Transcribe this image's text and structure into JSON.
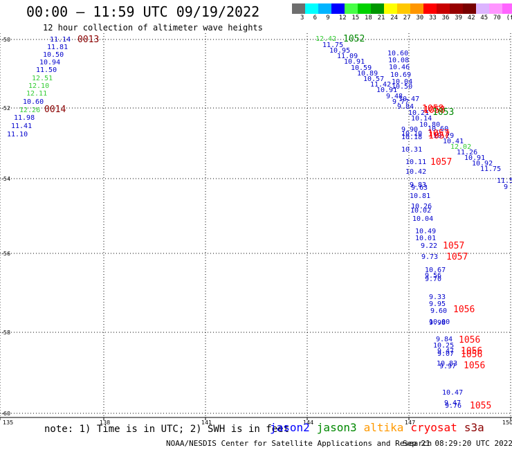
{
  "title": "00:00 — 11:59 UTC 09/19/2022",
  "subtitle": "12 hour collection of altimeter wave heights",
  "legend": {
    "colors": [
      "#6e6e6e",
      "#00ffff",
      "#00b4ff",
      "#0000ff",
      "#46ff46",
      "#00d200",
      "#009600",
      "#ffff00",
      "#ffc800",
      "#ff9600",
      "#ff0000",
      "#c80000",
      "#960000",
      "#780000",
      "#dcb4ff",
      "#ff96ff",
      "#ff64ff",
      "#000000"
    ],
    "labels": [
      "3",
      "6",
      "9",
      "12",
      "15",
      "18",
      "21",
      "24",
      "27",
      "30",
      "33",
      "36",
      "39",
      "42",
      "45",
      "70",
      "(ft)"
    ]
  },
  "axes": {
    "lon_ticks": [
      "135",
      "138",
      "141",
      "144",
      "147",
      "150"
    ],
    "lat_ticks": [
      "-50",
      "-52",
      "-54",
      "-56",
      "-58",
      "-60"
    ]
  },
  "map_data": {
    "track_west": [
      {
        "text": "11.14",
        "c": "#0000cc"
      },
      {
        "text": "11.81",
        "c": "#0000cc"
      },
      {
        "text": "10.50",
        "c": "#0000cc"
      },
      {
        "text": "10.94",
        "c": "#0000cc"
      },
      {
        "text": "11.50",
        "c": "#0000cc"
      },
      {
        "text": "12.51",
        "c": "#33cc33"
      },
      {
        "text": "12.10",
        "c": "#33cc33"
      },
      {
        "text": "12.11",
        "c": "#33cc33"
      },
      {
        "text": "10.60",
        "c": "#0000cc"
      },
      {
        "text": "12.26",
        "c": "#33cc33"
      },
      {
        "text": "11.98",
        "c": "#0000cc"
      },
      {
        "text": "11.41",
        "c": "#0000cc"
      },
      {
        "text": "11.10",
        "c": "#0000cc"
      }
    ],
    "track_diag": [
      {
        "text": "12.42",
        "c": "#33cc33"
      },
      {
        "text": "11.75",
        "c": "#0000cc"
      },
      {
        "text": "10.95",
        "c": "#0000cc"
      },
      {
        "text": "11.09",
        "c": "#0000cc"
      },
      {
        "text": "10.91",
        "c": "#0000cc"
      },
      {
        "text": "10.59",
        "c": "#0000cc"
      },
      {
        "text": "10.89",
        "c": "#0000cc"
      },
      {
        "text": "10.57",
        "c": "#0000cc"
      },
      {
        "text": "11.42",
        "c": "#0000cc"
      },
      {
        "text": "10.91",
        "c": "#0000cc"
      },
      {
        "text": "9.48",
        "c": "#0000cc"
      },
      {
        "text": "9.77",
        "c": "#0000cc"
      },
      {
        "text": "9.84",
        "c": "#0000cc"
      },
      {
        "text": "10.21",
        "c": "#0000cc"
      }
    ],
    "track_ne": [
      {
        "text": "10.60",
        "c": "#0000cc"
      },
      {
        "text": "10.08",
        "c": "#0000cc"
      },
      {
        "text": "10.46",
        "c": "#0000cc"
      },
      {
        "text": "10.69",
        "c": "#0000cc"
      },
      {
        "text": "10.04",
        "c": "#0000cc"
      },
      {
        "text": "10.50",
        "c": "#0000cc"
      },
      {
        "text": "10.47",
        "c": "#0000cc"
      },
      {
        "text": "10.14",
        "c": "#0000cc"
      },
      {
        "text": "10.80",
        "c": "#0000cc"
      },
      {
        "text": "10.60",
        "c": "#0000cc"
      },
      {
        "text": "10.29",
        "c": "#0000cc"
      },
      {
        "text": "10.41",
        "c": "#0000cc"
      },
      {
        "text": "12.02",
        "c": "#33cc33"
      },
      {
        "text": "11.26",
        "c": "#0000cc"
      },
      {
        "text": "10.91",
        "c": "#0000cc"
      },
      {
        "text": "10.92",
        "c": "#0000cc"
      },
      {
        "text": "11.75",
        "c": "#0000cc"
      },
      {
        "text": "11.5",
        "c": "#0000cc"
      },
      {
        "text": "9",
        "c": "#0000cc"
      }
    ],
    "track_south": [
      {
        "text": "9.90",
        "c": "#0000cc"
      },
      {
        "text": "10.10",
        "c": "#0000cc"
      },
      {
        "text": "10.18",
        "c": "#0000cc"
      },
      {
        "text": "10.31",
        "c": "#0000cc"
      },
      {
        "text": "10.11",
        "c": "#0000cc"
      },
      {
        "text": "10.42",
        "c": "#0000cc"
      },
      {
        "text": "9.83",
        "c": "#0000cc"
      },
      {
        "text": "9.63",
        "c": "#0000cc"
      },
      {
        "text": "10.81",
        "c": "#0000cc"
      },
      {
        "text": "10.26",
        "c": "#0000cc"
      },
      {
        "text": "10.02",
        "c": "#0000cc"
      },
      {
        "text": "10.04",
        "c": "#0000cc"
      },
      {
        "text": "10.49",
        "c": "#0000cc"
      },
      {
        "text": "10.01",
        "c": "#0000cc"
      },
      {
        "text": "9.22",
        "c": "#0000cc"
      },
      {
        "text": "9.73",
        "c": "#0000cc"
      },
      {
        "text": "10.67",
        "c": "#0000cc"
      },
      {
        "text": "9.56",
        "c": "#0000cc"
      },
      {
        "text": "9.70",
        "c": "#0000cc"
      },
      {
        "text": "9.33",
        "c": "#0000cc"
      },
      {
        "text": "9.95",
        "c": "#0000cc"
      },
      {
        "text": "9.60",
        "c": "#0000cc"
      },
      {
        "text": "10.00",
        "c": "#0000cc"
      },
      {
        "text": "9.98",
        "c": "#0000cc"
      },
      {
        "text": "9.84",
        "c": "#0000cc"
      },
      {
        "text": "10.25",
        "c": "#0000cc"
      },
      {
        "text": "9.47",
        "c": "#0000cc"
      },
      {
        "text": "9.07",
        "c": "#0000cc"
      },
      {
        "text": "10.83",
        "c": "#0000cc"
      },
      {
        "text": "9.97",
        "c": "#0000cc"
      },
      {
        "text": "10.47",
        "c": "#0000cc"
      },
      {
        "text": "9.47",
        "c": "#0000cc"
      },
      {
        "text": "9.76",
        "c": "#0000cc"
      }
    ],
    "time_labels": [
      {
        "text": "0013",
        "c": "#8b0000"
      },
      {
        "text": "0014",
        "c": "#8b0000"
      },
      {
        "text": "1052",
        "c": "#008800"
      },
      {
        "text": "1058",
        "c": "#ff0000"
      },
      {
        "text": "1058",
        "c": "#ff0000"
      },
      {
        "text": "1053",
        "c": "#008800"
      },
      {
        "text": "1057",
        "c": "#ff0000"
      },
      {
        "text": "1057",
        "c": "#ff0000"
      },
      {
        "text": "1057",
        "c": "#ff0000"
      },
      {
        "text": "1057",
        "c": "#ff0000"
      },
      {
        "text": "1057",
        "c": "#ff0000"
      },
      {
        "text": "1056",
        "c": "#ff0000"
      },
      {
        "text": "1056",
        "c": "#ff0000"
      },
      {
        "text": "1056",
        "c": "#ff0000"
      },
      {
        "text": "1056",
        "c": "#ff0000"
      },
      {
        "text": "1056",
        "c": "#ff0000"
      },
      {
        "text": "1055",
        "c": "#ff0000"
      }
    ]
  },
  "note": "note: 1) Time is in UTC; 2) SWH is in feet",
  "satellites": [
    {
      "name": "jason2",
      "color": "#0000ff"
    },
    {
      "name": "jason3",
      "color": "#008800"
    },
    {
      "name": "altika",
      "color": "#ff9900"
    },
    {
      "name": "cryosat",
      "color": "#ff0000"
    },
    {
      "name": "s3a",
      "color": "#8b0000"
    }
  ],
  "footer": {
    "credit": "NOAA/NESDIS Center for Satellite Applications and Research",
    "timestamp": "Sep 21 08:29:20 UTC 2022"
  }
}
